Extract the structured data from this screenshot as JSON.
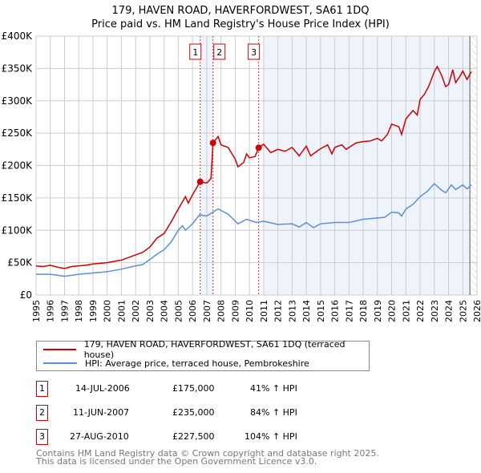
{
  "chart_data": {
    "type": "line",
    "title": "179, HAVEN ROAD, HAVERFORDWEST, SA61 1DQ",
    "subtitle": "Price paid vs. HM Land Registry's House Price Index (HPI)",
    "xlim": [
      1995,
      2026
    ],
    "ylim": [
      0,
      400000
    ],
    "x_ticks": [
      "1995",
      "1996",
      "1997",
      "1998",
      "1999",
      "2000",
      "2001",
      "2002",
      "2003",
      "2004",
      "2005",
      "2006",
      "2007",
      "2008",
      "2009",
      "2010",
      "2011",
      "2012",
      "2013",
      "2014",
      "2015",
      "2016",
      "2017",
      "2018",
      "2019",
      "2020",
      "2021",
      "2022",
      "2023",
      "2024",
      "2025",
      "2026"
    ],
    "y_ticks": [
      {
        "v": 0,
        "label": "£0"
      },
      {
        "v": 50000,
        "label": "£50K"
      },
      {
        "v": 100000,
        "label": "£100K"
      },
      {
        "v": 150000,
        "label": "£150K"
      },
      {
        "v": 200000,
        "label": "£200K"
      },
      {
        "v": 250000,
        "label": "£250K"
      },
      {
        "v": 300000,
        "label": "£300K"
      },
      {
        "v": 350000,
        "label": "£350K"
      },
      {
        "v": 400000,
        "label": "£400K"
      }
    ],
    "grid": true,
    "shaded_ranges": [
      [
        2006.54,
        2007.44
      ],
      [
        2011.0,
        2025.5
      ]
    ],
    "hatched_from": 2025.5,
    "series": [
      {
        "name": "179, HAVEN ROAD, HAVERFORDWEST, SA61 1DQ (terraced house)",
        "color": "#cc0000",
        "x": [
          1995,
          1995.5,
          1996,
          1996.5,
          1997,
          1997.5,
          1998,
          1998.5,
          1999,
          2000,
          2001,
          2002,
          2002.5,
          2003,
          2003.5,
          2004,
          2004.5,
          2005,
          2005.5,
          2005.7,
          2006,
          2006.54,
          2007,
          2007.3,
          2007.44,
          2007.8,
          2008,
          2008.5,
          2009,
          2009.2,
          2009.6,
          2009.8,
          2010,
          2010.4,
          2010.65,
          2011,
          2011.5,
          2012,
          2012.5,
          2013,
          2013.5,
          2014,
          2014.3,
          2015,
          2015.5,
          2015.8,
          2016,
          2016.5,
          2016.8,
          2017,
          2017.5,
          2018,
          2018.5,
          2019,
          2019.3,
          2019.7,
          2020,
          2020.5,
          2020.7,
          2021,
          2021.5,
          2021.8,
          2022,
          2022.3,
          2022.6,
          2023,
          2023.2,
          2023.5,
          2023.8,
          2024,
          2024.3,
          2024.5,
          2024.8,
          2025,
          2025.3,
          2025.6
        ],
        "y": [
          45000,
          44000,
          46000,
          43000,
          41000,
          44000,
          45000,
          46000,
          48000,
          50000,
          54000,
          62000,
          66000,
          74000,
          88000,
          95000,
          113000,
          133000,
          152000,
          142000,
          155000,
          175000,
          173000,
          180000,
          235000,
          245000,
          232000,
          228000,
          210000,
          198000,
          205000,
          218000,
          212000,
          214000,
          227500,
          233000,
          220000,
          225000,
          222000,
          228000,
          215000,
          230000,
          215000,
          226000,
          232000,
          218000,
          228000,
          232000,
          225000,
          228000,
          235000,
          237000,
          238000,
          242000,
          238000,
          248000,
          264000,
          260000,
          248000,
          272000,
          285000,
          278000,
          302000,
          310000,
          322000,
          345000,
          353000,
          340000,
          322000,
          325000,
          348000,
          328000,
          338000,
          346000,
          333000,
          345000
        ]
      },
      {
        "name": "HPI: Average price, terraced house, Pembrokeshire",
        "color": "#5b8fd6",
        "x": [
          1995,
          1996,
          1997,
          1998,
          1999,
          2000,
          2001,
          2002,
          2002.5,
          2003,
          2003.5,
          2004,
          2004.5,
          2005,
          2005.3,
          2005.5,
          2006,
          2006.5,
          2007,
          2007.8,
          2008.5,
          2009.2,
          2009.8,
          2010.5,
          2011,
          2012,
          2013,
          2013.5,
          2014,
          2014.5,
          2015,
          2016,
          2017,
          2018,
          2019,
          2019.5,
          2020,
          2020.5,
          2020.7,
          2021,
          2021.5,
          2022,
          2022.5,
          2023,
          2023.5,
          2023.8,
          2024.2,
          2024.5,
          2025,
          2025.3,
          2025.6
        ],
        "y": [
          32000,
          32000,
          29000,
          32000,
          34000,
          36000,
          40000,
          45000,
          47000,
          55000,
          63000,
          70000,
          82000,
          100000,
          107000,
          100000,
          110000,
          124000,
          122000,
          133000,
          125000,
          110000,
          117000,
          112000,
          114000,
          109000,
          110000,
          105000,
          112000,
          104000,
          110000,
          112000,
          112000,
          117000,
          119000,
          120000,
          128000,
          127000,
          122000,
          133000,
          140000,
          152000,
          160000,
          172000,
          162000,
          158000,
          170000,
          163000,
          170000,
          164000,
          170000
        ]
      }
    ],
    "sales": [
      {
        "n": "1",
        "x": 2006.54,
        "price": 175000,
        "date": "14-JUL-2006",
        "price_label": "£175,000",
        "hpi": "41% ↑ HPI"
      },
      {
        "n": "2",
        "x": 2007.44,
        "price": 235000,
        "date": "11-JUN-2007",
        "price_label": "£235,000",
        "hpi": "84% ↑ HPI"
      },
      {
        "n": "3",
        "x": 2010.65,
        "price": 227500,
        "date": "27-AUG-2010",
        "price_label": "£227,500",
        "hpi": "104% ↑ HPI"
      }
    ]
  },
  "legend": {
    "property": "179, HAVEN ROAD, HAVERFORDWEST, SA61 1DQ (terraced house)",
    "hpi": "HPI: Average price, terraced house, Pembrokeshire"
  },
  "footer": {
    "line1": "Contains HM Land Registry data © Crown copyright and database right 2025.",
    "line2": "This data is licensed under the Open Government Licence v3.0."
  }
}
